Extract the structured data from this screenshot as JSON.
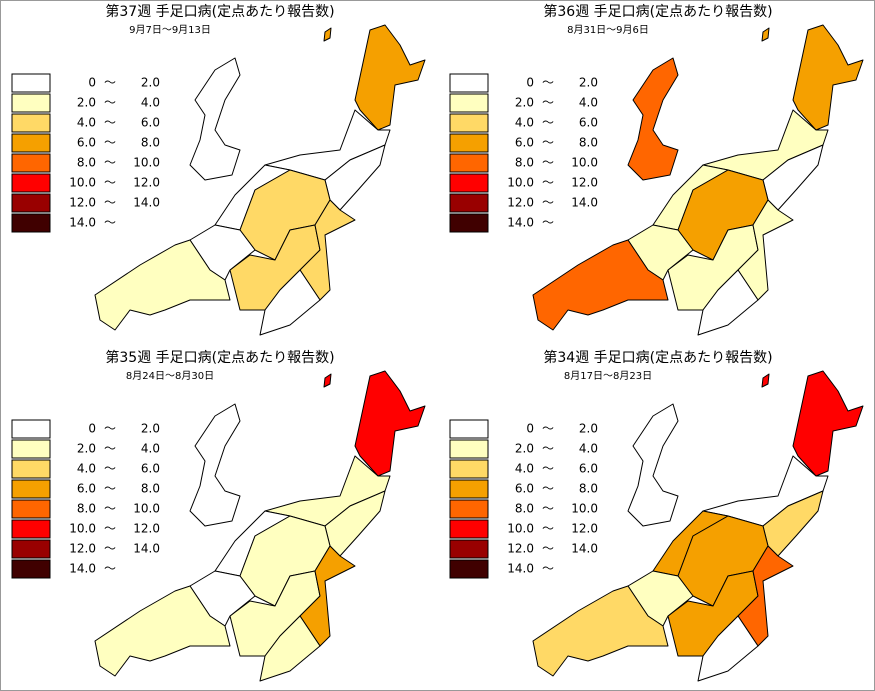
{
  "panels": [
    {
      "title": "第37週 手足口病(定点あたり報告数)",
      "dates": "9月7日〜9月13日"
    },
    {
      "title": "第36週 手足口病(定点あたり報告数)",
      "dates": "8月31日〜9月6日"
    },
    {
      "title": "第35週 手足口病(定点あたり報告数)",
      "dates": "8月24日〜8月30日"
    },
    {
      "title": "第34週 手足口病(定点あたり報告数)",
      "dates": "8月17日〜8月23日"
    }
  ],
  "legend": {
    "colors": [
      "#ffffff",
      "#ffffc0",
      "#ffd966",
      "#f5a000",
      "#ff6600",
      "#ff0000",
      "#990000",
      "#400000"
    ],
    "rows": [
      {
        "from": "0",
        "sep": "〜",
        "to": "2.0"
      },
      {
        "from": "2.0",
        "sep": "〜",
        "to": "4.0"
      },
      {
        "from": "4.0",
        "sep": "〜",
        "to": "6.0"
      },
      {
        "from": "6.0",
        "sep": "〜",
        "to": "8.0"
      },
      {
        "from": "8.0",
        "sep": "〜",
        "to": "10.0"
      },
      {
        "from": "10.0",
        "sep": "〜",
        "to": "12.0"
      },
      {
        "from": "12.0",
        "sep": "〜",
        "to": "14.0"
      },
      {
        "from": "14.0",
        "sep": "〜"
      }
    ]
  }
}
